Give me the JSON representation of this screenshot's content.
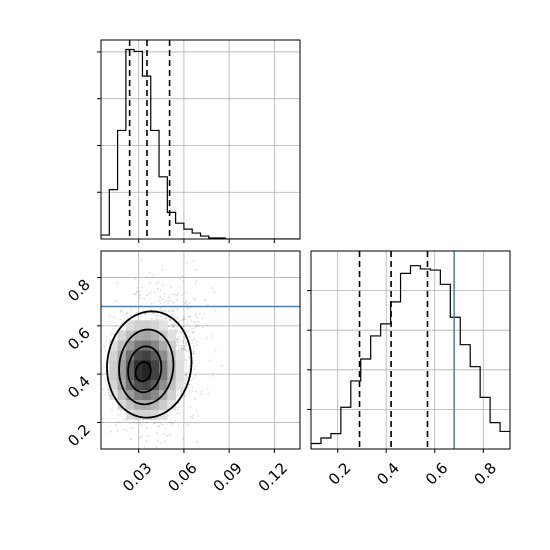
{
  "chart_data": {
    "type": "corner",
    "parameters": [
      "x",
      "y"
    ],
    "x_ticks": [
      "0.03",
      "0.06",
      "0.09",
      "0.12"
    ],
    "y_ticks": [
      "0.2",
      "0.4",
      "0.6",
      "0.8"
    ],
    "x_range": [
      0.005,
      0.137
    ],
    "y_range": [
      0.09,
      0.91
    ],
    "grid": true,
    "truth": {
      "x": null,
      "y": 0.68,
      "color": "#4682b4"
    },
    "hist_x": {
      "bin_width": 0.0055,
      "edges_start": 0.005,
      "counts": [
        4,
        50,
        110,
        192,
        190,
        165,
        110,
        63,
        27,
        16,
        10,
        6,
        3,
        1,
        1,
        0,
        0,
        0,
        0,
        0,
        0,
        0,
        0,
        0
      ],
      "quantiles": [
        0.024,
        0.0355,
        0.0505
      ]
    },
    "hist_y": {
      "bin_width": 0.041,
      "edges_start": 0.09,
      "counts": [
        5,
        10,
        14,
        38,
        62,
        82,
        103,
        114,
        134,
        160,
        167,
        164,
        163,
        150,
        120,
        95,
        75,
        47,
        24,
        16,
        10,
        6,
        3
      ],
      "quantiles": [
        0.29,
        0.42,
        0.57
      ]
    },
    "contours": [
      {
        "level": "outer",
        "cx": 0.037,
        "cy": 0.44,
        "rx": 0.028,
        "ry": 0.22,
        "tilt": 0.06
      },
      {
        "level": "mid",
        "cx": 0.035,
        "cy": 0.43,
        "rx": 0.018,
        "ry": 0.155,
        "tilt": 0.05
      },
      {
        "level": "inner",
        "cx": 0.034,
        "cy": 0.42,
        "rx": 0.011,
        "ry": 0.095,
        "tilt": 0.04
      },
      {
        "level": "core",
        "cx": 0.033,
        "cy": 0.41,
        "rx": 0.005,
        "ry": 0.04,
        "tilt": 0.03
      }
    ]
  }
}
